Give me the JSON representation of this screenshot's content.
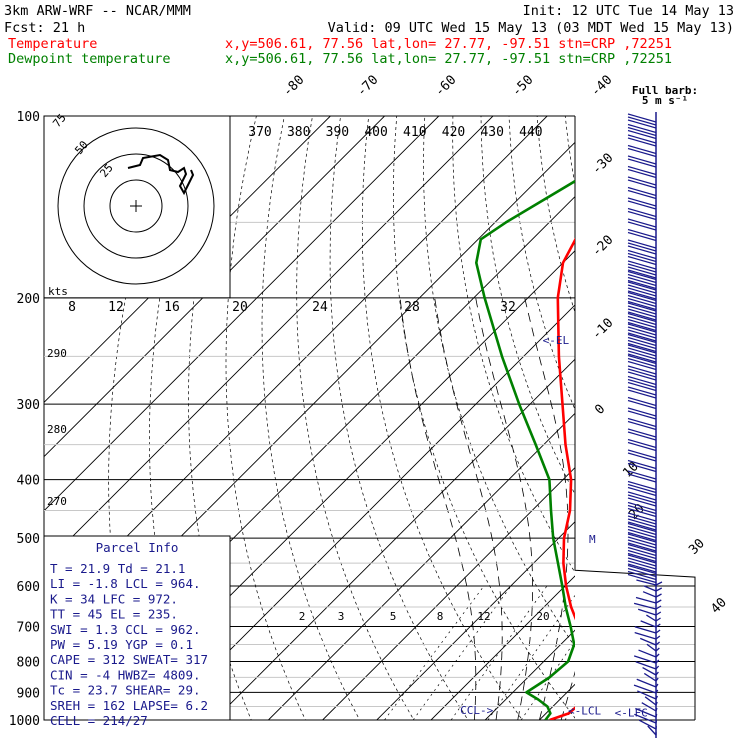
{
  "header": {
    "model": "3km ARW-WRF -- NCAR/MMM",
    "init": "Init: 12 UTC Tue 14 May 13",
    "fcst": "Fcst:    21 h",
    "valid": "Valid: 09 UTC Wed 15 May 13 (03 MDT Wed 15 May 13)",
    "temp_label": "Temperature",
    "temp_loc": "x,y=506.61, 77.56   lat,lon= 27.77, -97.51   stn=CRP ,72251",
    "dew_label": "Dewpoint temperature",
    "dew_loc": "x,y=506.61, 77.56   lat,lon= 27.77, -97.51   stn=CRP ,72251",
    "barb_label_1": "Full barb:",
    "barb_label_2": "5 m s⁻¹"
  },
  "colors": {
    "temperature": "#ff0000",
    "dewpoint": "#008000",
    "panel": "#1a1a8c",
    "grid": "#000000"
  },
  "chart_data": {
    "type": "line",
    "title": "",
    "pressure_levels": [
      {
        "label": "100",
        "p": 100
      },
      {
        "label": "200",
        "p": 200
      },
      {
        "label": "300",
        "p": 300
      },
      {
        "label": "400",
        "p": 400
      },
      {
        "label": "500",
        "p": 500
      },
      {
        "label": "600",
        "p": 600
      },
      {
        "label": "700",
        "p": 700
      },
      {
        "label": "800",
        "p": 800
      },
      {
        "label": "900",
        "p": 900
      },
      {
        "label": "1000",
        "p": 1000
      }
    ],
    "isotherm_labels": [
      {
        "label": "-80",
        "t": -80
      },
      {
        "label": "-70",
        "t": -70
      },
      {
        "label": "-60",
        "t": -60
      },
      {
        "label": "-50",
        "t": -50
      },
      {
        "label": "-40",
        "t": -40
      },
      {
        "label": "-30",
        "t": -30
      },
      {
        "label": "-20",
        "t": -20
      },
      {
        "label": "-10",
        "t": -10
      },
      {
        "label": "0",
        "t": 0
      },
      {
        "label": "10",
        "t": 10
      },
      {
        "label": "20",
        "t": 20
      },
      {
        "label": "30",
        "t": 30
      },
      {
        "label": "40",
        "t": 40
      }
    ],
    "theta_e_labels": [
      "370",
      "380",
      "390",
      "400",
      "410",
      "420",
      "430",
      "440"
    ],
    "adiabat_labels": [
      "290",
      "280",
      "270"
    ],
    "mixing_ratio_labels": [
      "2",
      "3",
      "5",
      "8",
      "12",
      "20"
    ],
    "hodograph_speed_labels": [
      "8",
      "12",
      "16",
      "20",
      "24",
      "28",
      "32"
    ],
    "hodograph_ring_labels": [
      "75",
      "50",
      "25"
    ],
    "hodograph_unit": "kts",
    "series": [
      {
        "name": "Temperature",
        "points": [
          {
            "p": 1000,
            "t": 21.9
          },
          {
            "p": 975,
            "t": 24.2
          },
          {
            "p": 950,
            "t": 24.4
          },
          {
            "p": 925,
            "t": 24.5
          },
          {
            "p": 900,
            "t": 24.0
          },
          {
            "p": 850,
            "t": 22.0
          },
          {
            "p": 800,
            "t": 18.5
          },
          {
            "p": 750,
            "t": 14.5
          },
          {
            "p": 700,
            "t": 10.0
          },
          {
            "p": 650,
            "t": 5.0
          },
          {
            "p": 600,
            "t": 0.2
          },
          {
            "p": 550,
            "t": -4.5
          },
          {
            "p": 500,
            "t": -9.0
          },
          {
            "p": 450,
            "t": -13.0
          },
          {
            "p": 400,
            "t": -18.5
          },
          {
            "p": 350,
            "t": -26.0
          },
          {
            "p": 300,
            "t": -34.0
          },
          {
            "p": 250,
            "t": -43.5
          },
          {
            "p": 200,
            "t": -54.5
          },
          {
            "p": 175,
            "t": -60.0
          },
          {
            "p": 150,
            "t": -63.5
          },
          {
            "p": 125,
            "t": -63.0
          },
          {
            "p": 110,
            "t": -62.0
          },
          {
            "p": 100,
            "t": -61.0
          }
        ]
      },
      {
        "name": "Dewpoint temperature",
        "points": [
          {
            "p": 1000,
            "t": 21.1
          },
          {
            "p": 975,
            "t": 20.8
          },
          {
            "p": 950,
            "t": 19.0
          },
          {
            "p": 925,
            "t": 16.0
          },
          {
            "p": 900,
            "t": 12.5
          },
          {
            "p": 850,
            "t": 14.0
          },
          {
            "p": 800,
            "t": 14.5
          },
          {
            "p": 750,
            "t": 12.5
          },
          {
            "p": 700,
            "t": 8.5
          },
          {
            "p": 650,
            "t": 4.0
          },
          {
            "p": 600,
            "t": -0.5
          },
          {
            "p": 550,
            "t": -5.5
          },
          {
            "p": 500,
            "t": -11.0
          },
          {
            "p": 450,
            "t": -16.5
          },
          {
            "p": 400,
            "t": -22.5
          },
          {
            "p": 350,
            "t": -31.5
          },
          {
            "p": 300,
            "t": -42.0
          },
          {
            "p": 250,
            "t": -54.0
          },
          {
            "p": 200,
            "t": -68.0
          },
          {
            "p": 175,
            "t": -76.0
          },
          {
            "p": 160,
            "t": -79.5
          },
          {
            "p": 150,
            "t": -78.0
          },
          {
            "p": 125,
            "t": -72.0
          },
          {
            "p": 110,
            "t": -70.0
          },
          {
            "p": 100,
            "t": -68.0
          }
        ]
      }
    ],
    "annotations": [
      {
        "label": "<-EL",
        "p": 235,
        "t": -49.5
      },
      {
        "label": "M",
        "p": 502,
        "t": -4.2
      },
      {
        "label": "CCL->",
        "p": 962,
        "t": 3.5
      },
      {
        "label": "<-LCL",
        "p": 964,
        "t": 23.5
      },
      {
        "label": "<-LFC",
        "p": 972,
        "t": 32.5
      }
    ]
  },
  "parcel_info": {
    "title": "Parcel Info",
    "rows": [
      "T  =    21.9  Td =  21.1",
      "LI =    -1.8  LCL =  964.",
      "K  =     34  LFC = 972.",
      "TT =     45  EL  =  235.",
      "SWI =   1.3  CCL =  962.",
      "PW =   5.19  YGP =   0.1",
      "CAPE =  312  SWEAT=  317",
      "CIN =    -4  HWBZ= 4809.",
      "Tc =   23.7  SHEAR=  29.",
      "SREH =  162  LAPSE=  6.2",
      "CELL = 214/27"
    ]
  }
}
